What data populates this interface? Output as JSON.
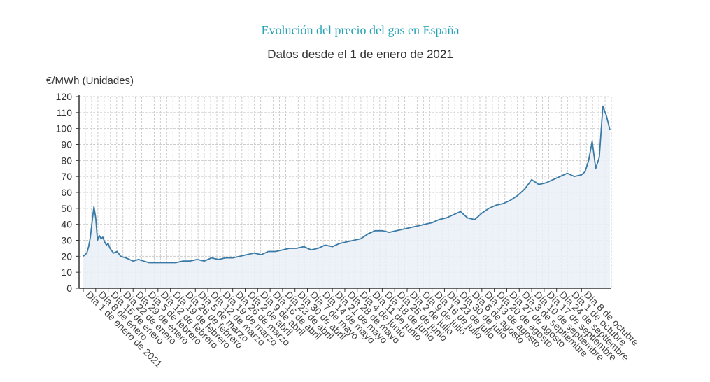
{
  "colors": {
    "title": "#26a3b8",
    "line": "#3a7aa6",
    "area": "#e9f0f7",
    "grid": "#cccccc",
    "axis": "#333333"
  },
  "chart_data": {
    "type": "area",
    "title": "Evolución del precio del gas en España",
    "subtitle": "Datos desde el 1 de enero de 2021",
    "ylabel": "€/MWh (Unidades)",
    "xlabel": "",
    "ylim": [
      0,
      120
    ],
    "yticks": [
      0,
      10,
      20,
      30,
      40,
      50,
      60,
      70,
      80,
      90,
      100,
      110,
      120
    ],
    "grid": true,
    "legend": "none",
    "x_tick_labels": [
      "Día 1 de enero de 2021",
      "Día 8 de enero",
      "Día 15 de enero",
      "Día 22 de enero",
      "Día 29 de enero",
      "Día 5 de febrero",
      "Día 12 de febrero",
      "Día 19 de febrero",
      "Día 26 de febrero",
      "Día 5 de marzo",
      "Día 12 de marzo",
      "Día 19 de marzo",
      "Día 26 de marzo",
      "Día 2 de abril",
      "Día 9 de abril",
      "Día 16 de abril",
      "Día 23 de abril",
      "Día 30 de abril",
      "Día 7 de mayo",
      "Día 14 de mayo",
      "Día 21 de mayo",
      "Día 28 de mayo",
      "Día 4 de junio",
      "Día 11 de junio",
      "Día 18 de junio",
      "Día 25 de junio",
      "Día 2 de julio",
      "Día 9 de julio",
      "Día 16 de julio",
      "Día 23 de julio",
      "Día 30 de julio",
      "Día 6 de agosto",
      "Día 13 de agosto",
      "Día 20 de agosto",
      "Día 27 de agosto",
      "Día 3 de septiembre",
      "Día 10 de septiembre",
      "Día 17 de septiembre",
      "Día 24 de septiembre",
      "Día 1 de octubre",
      "Día 8 de octubre"
    ],
    "series": [
      {
        "x_day": [
          0,
          1,
          2,
          3,
          4,
          5,
          6,
          7,
          8,
          9,
          10,
          11,
          12,
          13,
          14,
          15,
          17,
          19,
          21,
          24,
          26,
          28,
          31,
          34,
          37,
          41,
          44,
          48,
          52,
          56,
          60,
          64,
          68,
          72,
          76,
          80,
          84,
          88,
          92,
          96,
          100,
          104,
          108,
          112,
          116,
          120,
          124,
          128,
          132,
          136,
          140,
          144,
          148,
          152,
          156,
          160,
          164,
          168,
          172,
          176,
          180,
          184,
          188,
          192,
          196,
          200,
          204,
          208,
          212,
          216,
          220,
          224,
          228,
          232,
          236,
          240,
          244,
          248,
          252,
          256,
          260,
          264,
          268,
          272,
          276,
          280,
          282,
          284,
          286,
          288,
          290,
          292,
          294,
          296,
          298,
          300,
          302,
          304,
          306,
          308,
          310,
          312,
          314,
          316,
          318,
          320,
          322,
          324,
          326,
          328,
          330,
          332,
          333,
          334
        ],
        "y": [
          20,
          21,
          22,
          26,
          32,
          42,
          51,
          44,
          30,
          33,
          31,
          32,
          29,
          27,
          28,
          25,
          22,
          23,
          20,
          19,
          18,
          17,
          18,
          17,
          16,
          16,
          16,
          16,
          16,
          17,
          17,
          18,
          17,
          19,
          18,
          19,
          19,
          20,
          21,
          22,
          21,
          23,
          23,
          24,
          25,
          25,
          26,
          24,
          25,
          27,
          26,
          28,
          29,
          30,
          31,
          34,
          36,
          36,
          35,
          36,
          37,
          38,
          39,
          40,
          41,
          43,
          44,
          46,
          48,
          44,
          43,
          47,
          50,
          52,
          53,
          55,
          58,
          62,
          68,
          65,
          66,
          68,
          70,
          72,
          70,
          71,
          73,
          80,
          92,
          75,
          82,
          114,
          108,
          99,
          99,
          99,
          99,
          99,
          99,
          99,
          99,
          99,
          99,
          99,
          99,
          99,
          99,
          99,
          99,
          99,
          99,
          99,
          99,
          99
        ]
      }
    ]
  }
}
